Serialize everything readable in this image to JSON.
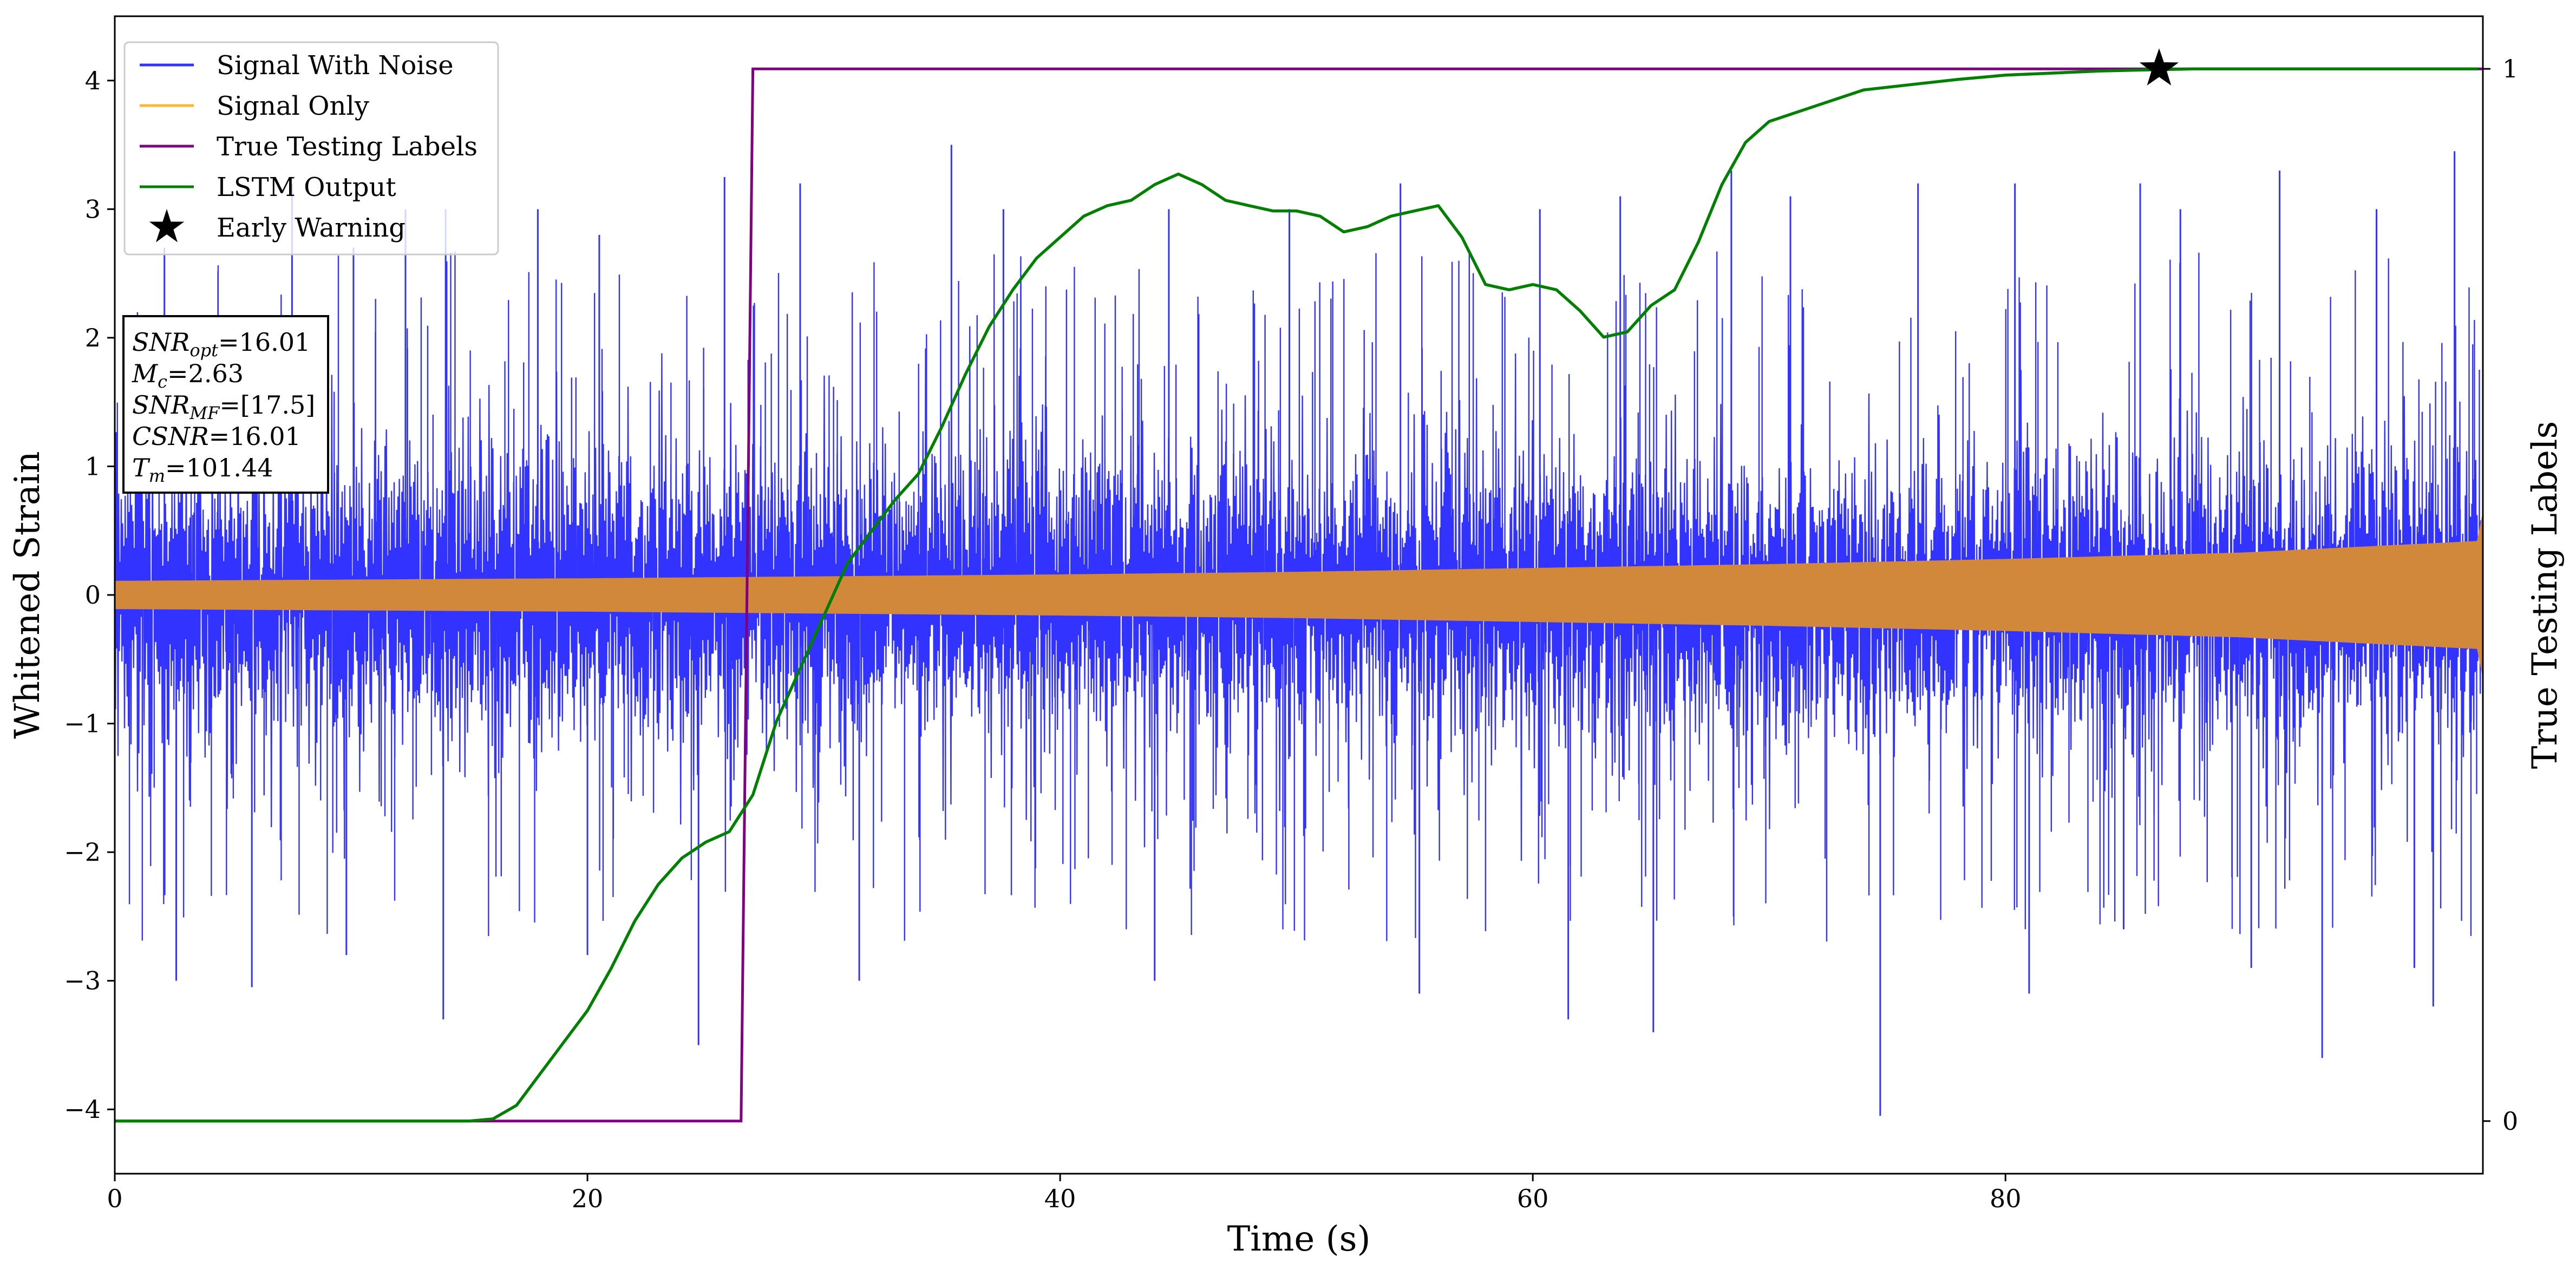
{
  "chart_data": {
    "type": "line",
    "xlabel": "Time (s)",
    "ylabel": "Whitened Strain",
    "y2label": "True Testing Labels",
    "xlim": [
      0,
      100.2
    ],
    "ylim": [
      -4.5,
      4.5
    ],
    "y2lim": [
      -0.05,
      1.05
    ],
    "x_ticks": [
      0,
      20,
      40,
      60,
      80
    ],
    "x_tick_labels": [
      "0",
      "20",
      "40",
      "60",
      "80"
    ],
    "y_ticks": [
      -4,
      -3,
      -2,
      -1,
      0,
      1,
      2,
      3,
      4
    ],
    "y_tick_labels": [
      "−4",
      "−3",
      "−2",
      "−1",
      "0",
      "1",
      "2",
      "3",
      "4"
    ],
    "y2_ticks": [
      0,
      1
    ],
    "y2_tick_labels": [
      "0",
      "1"
    ],
    "grid": false,
    "legend_position": "top-left",
    "legend": [
      {
        "label": "Signal With Noise",
        "color": "#3333ff",
        "kind": "line"
      },
      {
        "label": "Signal Only",
        "color": "#ffb733",
        "kind": "line"
      },
      {
        "label": "True Testing Labels",
        "color": "#800080",
        "kind": "line"
      },
      {
        "label": "LSTM Output",
        "color": "#008000",
        "kind": "line"
      },
      {
        "label": "Early Warning",
        "color": "#000000",
        "kind": "star"
      }
    ],
    "annotation_lines": [
      {
        "main": "SNR",
        "sub": "opt",
        "value": "=16.01"
      },
      {
        "main": "M",
        "sub": "c",
        "value": "=2.63"
      },
      {
        "main": "SNR",
        "sub": "MF",
        "value": "=[17.5]"
      },
      {
        "main": "CSNR",
        "sub": "",
        "value": "=16.01"
      },
      {
        "main": "T",
        "sub": "m",
        "value": "=101.44"
      }
    ],
    "series": [
      {
        "name": "Signal With Noise",
        "axis": "left",
        "color": "#3333ff",
        "style": "noise",
        "x_range": [
          0,
          100.2
        ],
        "typical_envelope": 1.3,
        "spikes": [
          {
            "x": 2.6,
            "y": -3.0
          },
          {
            "x": 5.8,
            "y": -3.05
          },
          {
            "x": 9.8,
            "y": -2.8
          },
          {
            "x": 13.9,
            "y": -3.3
          },
          {
            "x": 20.0,
            "y": -2.8
          },
          {
            "x": 24.7,
            "y": -3.5
          },
          {
            "x": 31.5,
            "y": -3.0
          },
          {
            "x": 44.0,
            "y": -3.0
          },
          {
            "x": 55.2,
            "y": -3.1
          },
          {
            "x": 61.5,
            "y": -3.3
          },
          {
            "x": 65.1,
            "y": -3.4
          },
          {
            "x": 74.7,
            "y": -4.05
          },
          {
            "x": 81.0,
            "y": -3.1
          },
          {
            "x": 85.0,
            "y": -2.6
          },
          {
            "x": 90.4,
            "y": -2.9
          },
          {
            "x": 93.4,
            "y": -3.6
          },
          {
            "x": 97.3,
            "y": -2.9
          },
          {
            "x": 98.1,
            "y": -3.2
          },
          {
            "x": 2.1,
            "y": 2.7
          },
          {
            "x": 7.5,
            "y": 3.2
          },
          {
            "x": 10.1,
            "y": 2.7
          },
          {
            "x": 12.3,
            "y": 3.0
          },
          {
            "x": 14.0,
            "y": 3.0
          },
          {
            "x": 17.9,
            "y": 3.0
          },
          {
            "x": 20.5,
            "y": 2.8
          },
          {
            "x": 25.8,
            "y": 3.25
          },
          {
            "x": 29.0,
            "y": 3.2
          },
          {
            "x": 35.4,
            "y": 3.5
          },
          {
            "x": 37.6,
            "y": 3.0
          },
          {
            "x": 44.6,
            "y": 3.0
          },
          {
            "x": 49.7,
            "y": 3.0
          },
          {
            "x": 54.4,
            "y": 3.2
          },
          {
            "x": 60.3,
            "y": 3.0
          },
          {
            "x": 63.7,
            "y": 3.1
          },
          {
            "x": 68.4,
            "y": 3.3
          },
          {
            "x": 70.9,
            "y": 3.1
          },
          {
            "x": 76.3,
            "y": 3.2
          },
          {
            "x": 80.4,
            "y": 3.2
          },
          {
            "x": 85.7,
            "y": 3.2
          },
          {
            "x": 87.4,
            "y": 3.0
          },
          {
            "x": 91.6,
            "y": 3.3
          },
          {
            "x": 95.7,
            "y": 3.0
          },
          {
            "x": 99.0,
            "y": 3.45
          }
        ]
      },
      {
        "name": "Signal Only",
        "axis": "left",
        "color": "#d2883a",
        "style": "chirp-envelope",
        "x": [
          0,
          10,
          20,
          30,
          40,
          50,
          60,
          70,
          80,
          90,
          100,
          100.2
        ],
        "amplitude": [
          0.11,
          0.12,
          0.13,
          0.145,
          0.16,
          0.18,
          0.21,
          0.24,
          0.28,
          0.33,
          0.42,
          0.65
        ]
      },
      {
        "name": "True Testing Labels",
        "axis": "right",
        "color": "#800080",
        "x": [
          0,
          26.5,
          27.0,
          100.2
        ],
        "y": [
          0,
          0,
          1,
          1
        ]
      },
      {
        "name": "LSTM Output",
        "axis": "right",
        "color": "#008000",
        "x": [
          0,
          15,
          16,
          17,
          18,
          19,
          20,
          21,
          22,
          23,
          24,
          25,
          26,
          27,
          28,
          29,
          30,
          31,
          32,
          33,
          34,
          35,
          36,
          37,
          38,
          39,
          40,
          41,
          42,
          43,
          44,
          45,
          46,
          47,
          48,
          49,
          50,
          51,
          52,
          53,
          54,
          55,
          56,
          57,
          58,
          59,
          60,
          61,
          62,
          63,
          64,
          65,
          66,
          67,
          68,
          69,
          70,
          72,
          74,
          76,
          78,
          80,
          82,
          84,
          86,
          88,
          90,
          95,
          100
        ],
        "y": [
          0,
          0,
          0.002,
          0.015,
          0.045,
          0.075,
          0.105,
          0.145,
          0.19,
          0.225,
          0.25,
          0.265,
          0.275,
          0.31,
          0.38,
          0.43,
          0.48,
          0.53,
          0.56,
          0.59,
          0.615,
          0.66,
          0.71,
          0.755,
          0.79,
          0.82,
          0.84,
          0.86,
          0.87,
          0.875,
          0.89,
          0.9,
          0.89,
          0.875,
          0.87,
          0.865,
          0.865,
          0.86,
          0.845,
          0.85,
          0.86,
          0.865,
          0.87,
          0.84,
          0.795,
          0.79,
          0.795,
          0.79,
          0.77,
          0.745,
          0.75,
          0.775,
          0.79,
          0.835,
          0.89,
          0.93,
          0.95,
          0.965,
          0.98,
          0.985,
          0.99,
          0.994,
          0.996,
          0.998,
          0.999,
          1.0,
          1.0,
          1.0,
          1.0
        ]
      }
    ],
    "markers": [
      {
        "name": "Early Warning",
        "axis": "right",
        "x": 86.5,
        "y": 1.0,
        "symbol": "star",
        "color": "#000000"
      }
    ]
  }
}
